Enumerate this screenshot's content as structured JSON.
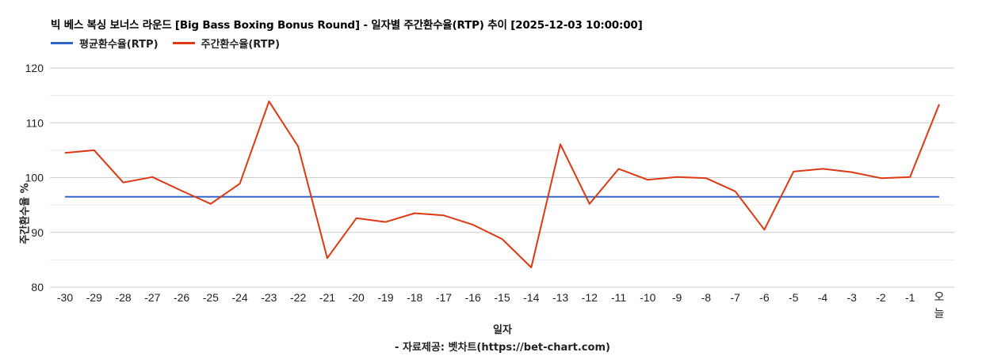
{
  "chart_title": "빅 베스 복싱 보너스 라운드 [Big Bass Boxing Bonus Round] - 일자별 주간환수율(RTP) 추이 [2025-12-03 10:00:00]",
  "legend": [
    {
      "label": "평균환수율(RTP)",
      "color": "#3366cc"
    },
    {
      "label": "주간환수율(RTP)",
      "color": "#dc3912"
    }
  ],
  "y_axis_label": "주간환수율 %",
  "x_axis_label": "일자",
  "source": "- 자료제공: 벳차트(https://bet-chart.com)",
  "chart_data": {
    "type": "line",
    "title": "빅 베스 복싱 보너스 라운드 [Big Bass Boxing Bonus Round] - 일자별 주간환수율(RTP) 추이 [2025-12-03 10:00:00]",
    "xlabel": "일자",
    "ylabel": "주간환수율 %",
    "ylim": [
      80,
      120
    ],
    "yticks": [
      80,
      90,
      100,
      110,
      120
    ],
    "grid": true,
    "legend_position": "top-left",
    "categories": [
      "-30",
      "-29",
      "-28",
      "-27",
      "-26",
      "-25",
      "-24",
      "-23",
      "-22",
      "-21",
      "-20",
      "-19",
      "-18",
      "-17",
      "-16",
      "-15",
      "-14",
      "-13",
      "-12",
      "-11",
      "-10",
      "-9",
      "-8",
      "-7",
      "-6",
      "-5",
      "-4",
      "-3",
      "-2",
      "-1",
      "오늘"
    ],
    "series": [
      {
        "name": "평균환수율(RTP)",
        "color": "#3366cc",
        "values": [
          96.5,
          96.5,
          96.5,
          96.5,
          96.5,
          96.5,
          96.5,
          96.5,
          96.5,
          96.5,
          96.5,
          96.5,
          96.5,
          96.5,
          96.5,
          96.5,
          96.5,
          96.5,
          96.5,
          96.5,
          96.5,
          96.5,
          96.5,
          96.5,
          96.5,
          96.5,
          96.5,
          96.5,
          96.5,
          96.5,
          96.5
        ]
      },
      {
        "name": "주간환수율(RTP)",
        "color": "#dc3912",
        "values": [
          104.5,
          105.0,
          99.1,
          100.1,
          97.6,
          95.2,
          98.9,
          113.9,
          105.7,
          85.3,
          92.6,
          91.9,
          93.5,
          93.1,
          91.4,
          88.8,
          83.6,
          106.1,
          95.2,
          101.6,
          99.6,
          100.1,
          99.9,
          97.5,
          90.5,
          101.1,
          101.6,
          101.0,
          99.9,
          100.1,
          113.4
        ]
      }
    ]
  }
}
